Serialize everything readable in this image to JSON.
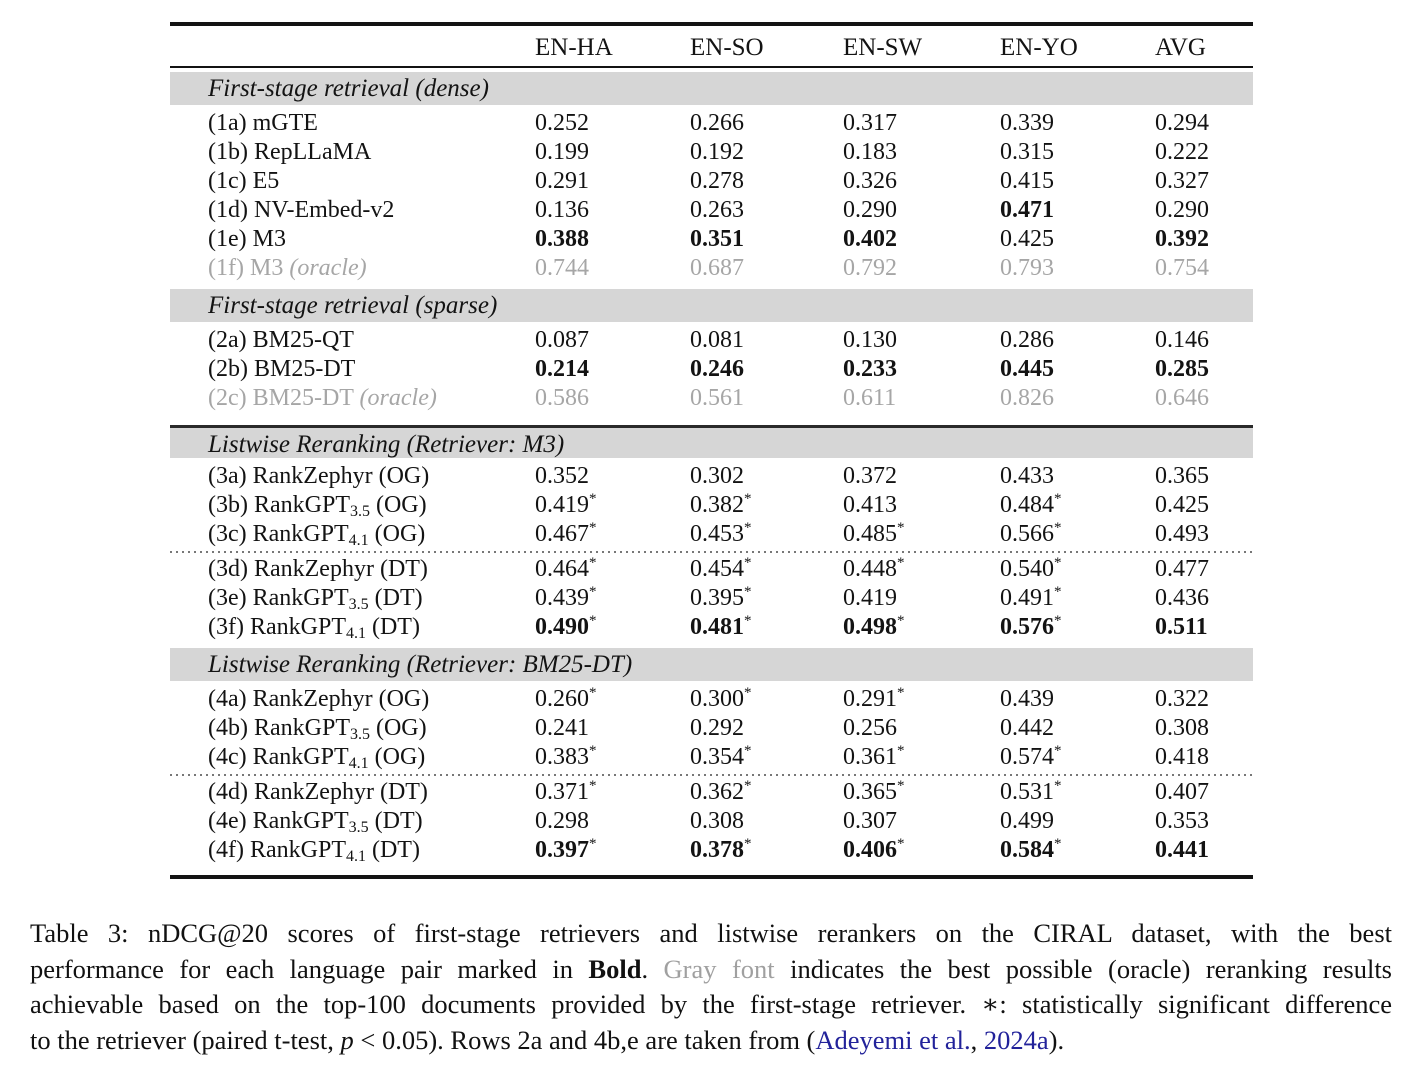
{
  "symbols": {
    "star": "*"
  },
  "colors": {
    "band_bg": "#d6d6d6",
    "oracle_gray": "#a6a6a6",
    "link_navy": "#22229a"
  },
  "table": {
    "columns": [
      "EN-HA",
      "EN-SO",
      "EN-SW",
      "EN-YO",
      "AVG"
    ],
    "sections": [
      {
        "title": "First-stage retrieval (dense)",
        "rule_above": false,
        "groups": [
          {
            "rows": [
              {
                "gray": false,
                "label": [
                  {
                    "t": "(1a) mGTE"
                  }
                ],
                "cells": [
                  {
                    "v": "0.252"
                  },
                  {
                    "v": "0.266"
                  },
                  {
                    "v": "0.317"
                  },
                  {
                    "v": "0.339"
                  },
                  {
                    "v": "0.294"
                  }
                ]
              },
              {
                "gray": false,
                "label": [
                  {
                    "t": "(1b) RepLLaMA"
                  }
                ],
                "cells": [
                  {
                    "v": "0.199"
                  },
                  {
                    "v": "0.192"
                  },
                  {
                    "v": "0.183"
                  },
                  {
                    "v": "0.315"
                  },
                  {
                    "v": "0.222"
                  }
                ]
              },
              {
                "gray": false,
                "label": [
                  {
                    "t": "(1c) E5"
                  }
                ],
                "cells": [
                  {
                    "v": "0.291"
                  },
                  {
                    "v": "0.278"
                  },
                  {
                    "v": "0.326"
                  },
                  {
                    "v": "0.415"
                  },
                  {
                    "v": "0.327"
                  }
                ]
              },
              {
                "gray": false,
                "label": [
                  {
                    "t": "(1d) NV-Embed-v2"
                  }
                ],
                "cells": [
                  {
                    "v": "0.136"
                  },
                  {
                    "v": "0.263"
                  },
                  {
                    "v": "0.290"
                  },
                  {
                    "v": "0.471",
                    "b": true
                  },
                  {
                    "v": "0.290"
                  }
                ]
              },
              {
                "gray": false,
                "label": [
                  {
                    "t": "(1e) M3"
                  }
                ],
                "cells": [
                  {
                    "v": "0.388",
                    "b": true
                  },
                  {
                    "v": "0.351",
                    "b": true
                  },
                  {
                    "v": "0.402",
                    "b": true
                  },
                  {
                    "v": "0.425"
                  },
                  {
                    "v": "0.392",
                    "b": true
                  }
                ]
              },
              {
                "gray": true,
                "label": [
                  {
                    "t": "(1f) M3 "
                  },
                  {
                    "t": "(oracle)",
                    "style": "italic"
                  }
                ],
                "cells": [
                  {
                    "v": "0.744"
                  },
                  {
                    "v": "0.687"
                  },
                  {
                    "v": "0.792"
                  },
                  {
                    "v": "0.793"
                  },
                  {
                    "v": "0.754"
                  }
                ]
              }
            ]
          }
        ]
      },
      {
        "title": "First-stage retrieval (sparse)",
        "rule_above": false,
        "groups": [
          {
            "rows": [
              {
                "gray": false,
                "label": [
                  {
                    "t": "(2a) BM25-QT"
                  }
                ],
                "cells": [
                  {
                    "v": "0.087"
                  },
                  {
                    "v": "0.081"
                  },
                  {
                    "v": "0.130"
                  },
                  {
                    "v": "0.286"
                  },
                  {
                    "v": "0.146"
                  }
                ]
              },
              {
                "gray": false,
                "label": [
                  {
                    "t": "(2b) BM25-DT"
                  }
                ],
                "cells": [
                  {
                    "v": "0.214",
                    "b": true
                  },
                  {
                    "v": "0.246",
                    "b": true
                  },
                  {
                    "v": "0.233",
                    "b": true
                  },
                  {
                    "v": "0.445",
                    "b": true
                  },
                  {
                    "v": "0.285",
                    "b": true
                  }
                ]
              },
              {
                "gray": true,
                "label": [
                  {
                    "t": "(2c) BM25-DT "
                  },
                  {
                    "t": "(oracle)",
                    "style": "italic"
                  }
                ],
                "cells": [
                  {
                    "v": "0.586"
                  },
                  {
                    "v": "0.561"
                  },
                  {
                    "v": "0.611"
                  },
                  {
                    "v": "0.826"
                  },
                  {
                    "v": "0.646"
                  }
                ]
              }
            ]
          }
        ]
      },
      {
        "title": "Listwise Reranking (Retriever: M3)",
        "rule_above": true,
        "groups": [
          {
            "rows": [
              {
                "gray": false,
                "label": [
                  {
                    "t": "(3a) RankZephyr (OG)"
                  }
                ],
                "cells": [
                  {
                    "v": "0.352"
                  },
                  {
                    "v": "0.302"
                  },
                  {
                    "v": "0.372"
                  },
                  {
                    "v": "0.433"
                  },
                  {
                    "v": "0.365"
                  }
                ]
              },
              {
                "gray": false,
                "label": [
                  {
                    "t": "(3b) RankGPT"
                  },
                  {
                    "t": "3.5",
                    "style": "sub"
                  },
                  {
                    "t": " (OG)"
                  }
                ],
                "cells": [
                  {
                    "v": "0.419",
                    "star": true
                  },
                  {
                    "v": "0.382",
                    "star": true
                  },
                  {
                    "v": "0.413"
                  },
                  {
                    "v": "0.484",
                    "star": true
                  },
                  {
                    "v": "0.425"
                  }
                ]
              },
              {
                "gray": false,
                "label": [
                  {
                    "t": "(3c) RankGPT"
                  },
                  {
                    "t": "4.1",
                    "style": "sub"
                  },
                  {
                    "t": " (OG)"
                  }
                ],
                "cells": [
                  {
                    "v": "0.467",
                    "star": true
                  },
                  {
                    "v": "0.453",
                    "star": true
                  },
                  {
                    "v": "0.485",
                    "star": true
                  },
                  {
                    "v": "0.566",
                    "star": true
                  },
                  {
                    "v": "0.493"
                  }
                ]
              }
            ]
          },
          {
            "rows": [
              {
                "gray": false,
                "label": [
                  {
                    "t": "(3d) RankZephyr (DT)"
                  }
                ],
                "cells": [
                  {
                    "v": "0.464",
                    "star": true
                  },
                  {
                    "v": "0.454",
                    "star": true
                  },
                  {
                    "v": "0.448",
                    "star": true
                  },
                  {
                    "v": "0.540",
                    "star": true
                  },
                  {
                    "v": "0.477"
                  }
                ]
              },
              {
                "gray": false,
                "label": [
                  {
                    "t": "(3e) RankGPT"
                  },
                  {
                    "t": "3.5",
                    "style": "sub"
                  },
                  {
                    "t": " (DT)"
                  }
                ],
                "cells": [
                  {
                    "v": "0.439",
                    "star": true
                  },
                  {
                    "v": "0.395",
                    "star": true
                  },
                  {
                    "v": "0.419"
                  },
                  {
                    "v": "0.491",
                    "star": true
                  },
                  {
                    "v": "0.436"
                  }
                ]
              },
              {
                "gray": false,
                "label": [
                  {
                    "t": "(3f) RankGPT"
                  },
                  {
                    "t": "4.1",
                    "style": "sub"
                  },
                  {
                    "t": " (DT)"
                  }
                ],
                "cells": [
                  {
                    "v": "0.490",
                    "b": true,
                    "star": true
                  },
                  {
                    "v": "0.481",
                    "b": true,
                    "star": true
                  },
                  {
                    "v": "0.498",
                    "b": true,
                    "star": true
                  },
                  {
                    "v": "0.576",
                    "b": true,
                    "star": true
                  },
                  {
                    "v": "0.511",
                    "b": true
                  }
                ]
              }
            ]
          }
        ]
      },
      {
        "title": "Listwise Reranking (Retriever: BM25-DT)",
        "rule_above": false,
        "groups": [
          {
            "rows": [
              {
                "gray": false,
                "label": [
                  {
                    "t": "(4a) RankZephyr (OG)"
                  }
                ],
                "cells": [
                  {
                    "v": "0.260",
                    "star": true
                  },
                  {
                    "v": "0.300",
                    "star": true
                  },
                  {
                    "v": "0.291",
                    "star": true
                  },
                  {
                    "v": "0.439"
                  },
                  {
                    "v": "0.322"
                  }
                ]
              },
              {
                "gray": false,
                "label": [
                  {
                    "t": "(4b) RankGPT"
                  },
                  {
                    "t": "3.5",
                    "style": "sub"
                  },
                  {
                    "t": " (OG)"
                  }
                ],
                "cells": [
                  {
                    "v": "0.241"
                  },
                  {
                    "v": "0.292"
                  },
                  {
                    "v": "0.256"
                  },
                  {
                    "v": "0.442"
                  },
                  {
                    "v": "0.308"
                  }
                ]
              },
              {
                "gray": false,
                "label": [
                  {
                    "t": "(4c) RankGPT"
                  },
                  {
                    "t": "4.1",
                    "style": "sub"
                  },
                  {
                    "t": " (OG)"
                  }
                ],
                "cells": [
                  {
                    "v": "0.383",
                    "star": true
                  },
                  {
                    "v": "0.354",
                    "star": true
                  },
                  {
                    "v": "0.361",
                    "star": true
                  },
                  {
                    "v": "0.574",
                    "star": true
                  },
                  {
                    "v": "0.418"
                  }
                ]
              }
            ]
          },
          {
            "rows": [
              {
                "gray": false,
                "label": [
                  {
                    "t": "(4d) RankZephyr (DT)"
                  }
                ],
                "cells": [
                  {
                    "v": "0.371",
                    "star": true
                  },
                  {
                    "v": "0.362",
                    "star": true
                  },
                  {
                    "v": "0.365",
                    "star": true
                  },
                  {
                    "v": "0.531",
                    "star": true
                  },
                  {
                    "v": "0.407"
                  }
                ]
              },
              {
                "gray": false,
                "label": [
                  {
                    "t": "(4e) RankGPT"
                  },
                  {
                    "t": "3.5",
                    "style": "sub"
                  },
                  {
                    "t": " (DT)"
                  }
                ],
                "cells": [
                  {
                    "v": "0.298"
                  },
                  {
                    "v": "0.308"
                  },
                  {
                    "v": "0.307"
                  },
                  {
                    "v": "0.499"
                  },
                  {
                    "v": "0.353"
                  }
                ]
              },
              {
                "gray": false,
                "label": [
                  {
                    "t": "(4f) RankGPT"
                  },
                  {
                    "t": "4.1",
                    "style": "sub"
                  },
                  {
                    "t": " (DT)"
                  }
                ],
                "cells": [
                  {
                    "v": "0.397",
                    "b": true,
                    "star": true
                  },
                  {
                    "v": "0.378",
                    "b": true,
                    "star": true
                  },
                  {
                    "v": "0.406",
                    "b": true,
                    "star": true
                  },
                  {
                    "v": "0.584",
                    "b": true,
                    "star": true
                  },
                  {
                    "v": "0.441",
                    "b": true
                  }
                ]
              }
            ]
          }
        ]
      }
    ]
  },
  "caption": {
    "lines": [
      [
        {
          "t": "Table 3: nDCG@20 scores of first-stage retrievers and listwise rerankers on the CIRAL dataset, with the best"
        }
      ],
      [
        {
          "t": "performance for each language pair marked in "
        },
        {
          "t": "Bold",
          "style": "bold"
        },
        {
          "t": ". "
        },
        {
          "t": "Gray font",
          "style": "gray"
        },
        {
          "t": " indicates the best possible (oracle) reranking results"
        }
      ],
      [
        {
          "t": "achievable based on the top-100 documents provided by the first-stage retriever. "
        },
        {
          "t": "∗",
          "style": "ast"
        },
        {
          "t": ": statistically significant difference"
        }
      ],
      [
        {
          "t": "to the retriever (paired t-test, "
        },
        {
          "t": "p",
          "style": "italic"
        },
        {
          "t": " < 0.05). Rows 2a and 4b,e are taken from ("
        },
        {
          "t": "Adeyemi et al.",
          "style": "link"
        },
        {
          "t": ", "
        },
        {
          "t": "2024a",
          "style": "link"
        },
        {
          "t": ")."
        }
      ]
    ]
  }
}
